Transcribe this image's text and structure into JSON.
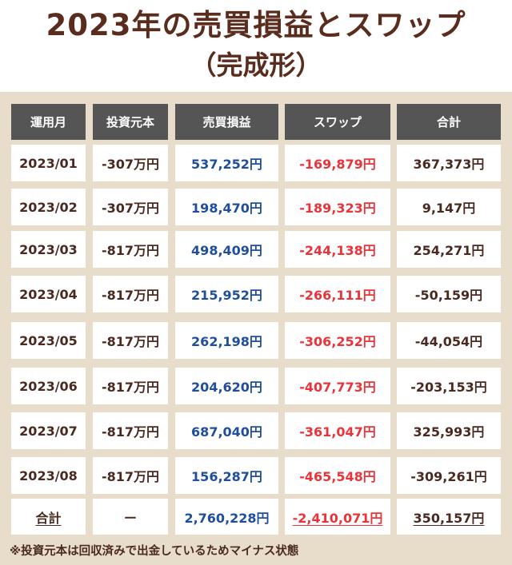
{
  "title": {
    "line1": "2023年の売買損益とスワップ",
    "line2": "（完成形）"
  },
  "table": {
    "headers": [
      "運用月",
      "投資元本",
      "売買損益",
      "スワップ",
      "合計"
    ],
    "rows": [
      [
        "2023/01",
        "-307万円",
        "537,252円",
        "-169,879円",
        "367,373円"
      ],
      [
        "2023/02",
        "-307万円",
        "198,470円",
        "-189,323円",
        "9,147円"
      ],
      [
        "2023/03",
        "-817万円",
        "498,409円",
        "-244,138円",
        "254,271円"
      ],
      [
        "2023/04",
        "-817万円",
        "215,952円",
        "-266,111円",
        "-50,159円"
      ],
      [
        "2023/05",
        "-817万円",
        "262,198円",
        "-306,252円",
        "-44,054円"
      ],
      [
        "2023/06",
        "-817万円",
        "204,620円",
        "-407,773円",
        "-203,153円"
      ],
      [
        "2023/07",
        "-817万円",
        "687,040円",
        "-361,047円",
        "325,993円"
      ],
      [
        "2023/08",
        "-817万円",
        "156,287円",
        "-465,548円",
        "-309,261円"
      ]
    ],
    "total": [
      "合計",
      "ー",
      "2,760,228円",
      "-2,410,071円",
      "350,157円"
    ]
  },
  "note": "※投資元本は回収済みで出金しているためマイナス状態",
  "colors": {
    "title": "#5a2c1e",
    "background": "#e8dccb",
    "header": "#555555",
    "profit": "#1f4e9e",
    "swap": "#e8343a",
    "text": "#4a2a20"
  }
}
